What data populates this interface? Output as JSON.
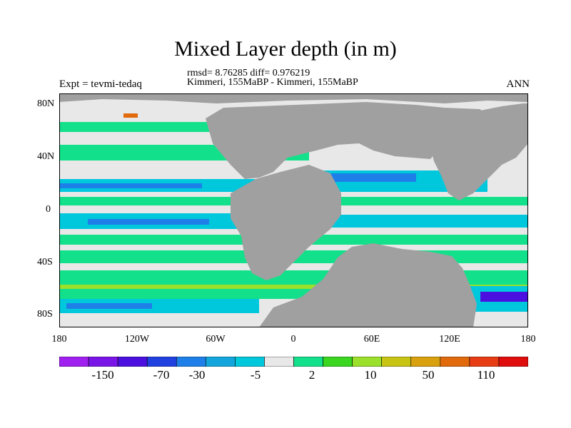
{
  "title": "Mixed Layer depth (in m)",
  "stats": {
    "line1": "rmsd= 8.76285 diff= 0.976219",
    "line2": "Kimmeri, 155MaBP - Kimmeri, 155MaBP"
  },
  "left_label": "Expt = tevmi-tedaq",
  "right_label": "ANN",
  "lat_labels": [
    "80N",
    "40N",
    "0",
    "40S",
    "80S"
  ],
  "lon_labels": [
    "180",
    "120W",
    "60W",
    "0",
    "60E",
    "120E",
    "180"
  ],
  "colorbar": {
    "colors": [
      "#a020f0",
      "#7a15e8",
      "#4b10e0",
      "#2040e0",
      "#1e7fe8",
      "#12a6dd",
      "#00c8dc",
      "#e8e8e8",
      "#13e08a",
      "#3ad620",
      "#9be02a",
      "#c8c414",
      "#d9a10f",
      "#e06a0c",
      "#e83c14",
      "#e00d0d"
    ],
    "labels": [
      "-150",
      "-70",
      "-30",
      "-5",
      "2",
      "10",
      "50",
      "110"
    ]
  },
  "map_colors": {
    "land": "#a0a0a0",
    "ocean_base": "#e8e8e8",
    "green": "#13e08a",
    "cyan": "#00c8dc",
    "blue": "#1e7fe8",
    "yellow": "#9be02a",
    "orange": "#e06a0c",
    "purple": "#4b10e0"
  }
}
